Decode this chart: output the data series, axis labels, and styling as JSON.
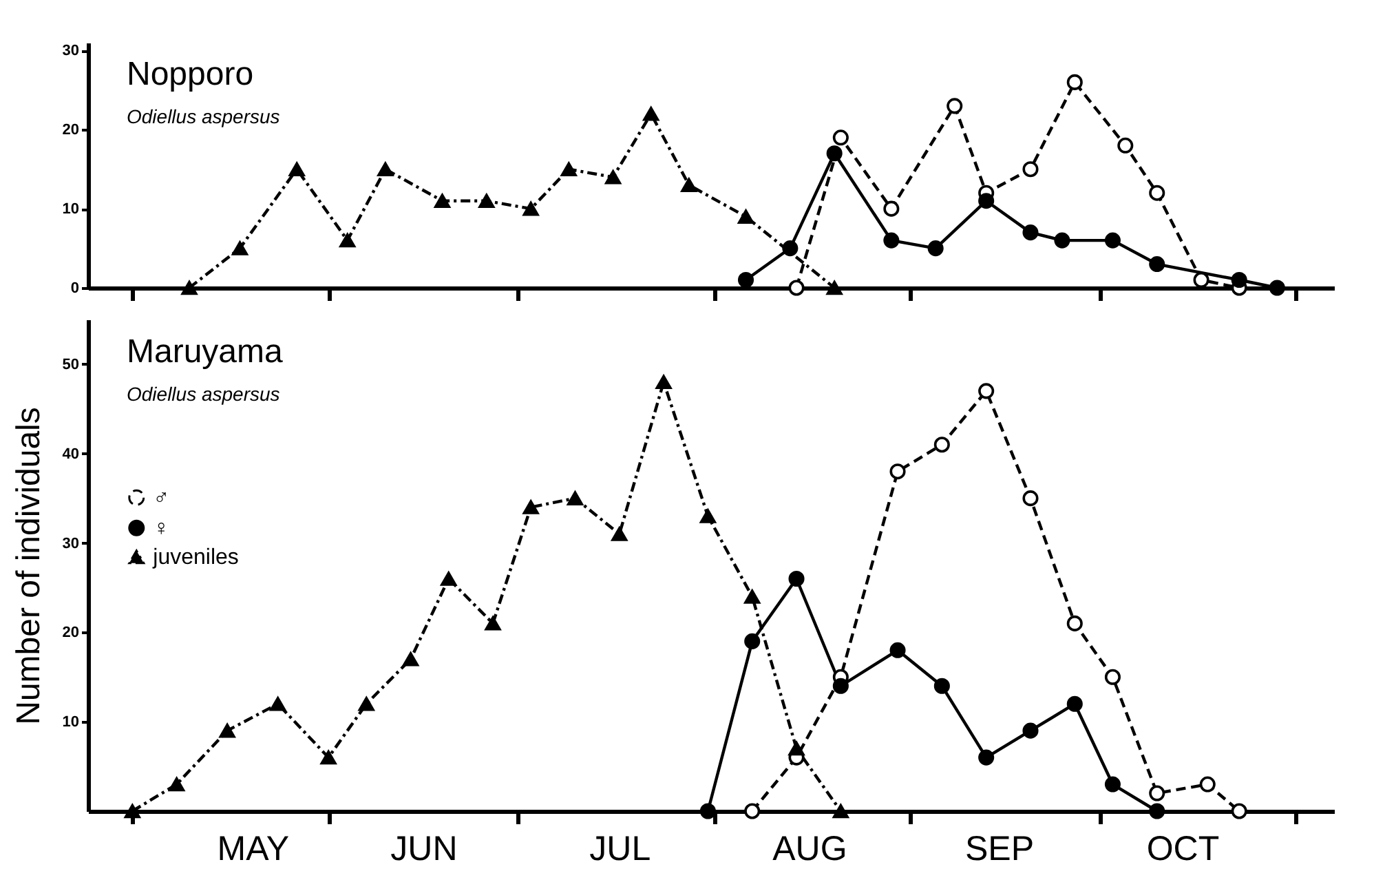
{
  "chart_data": [
    {
      "type": "line",
      "title": "Nopporo",
      "subtitle": "Odiellus aspersus",
      "xlim": [
        "--04-24",
        "--11-07"
      ],
      "ylim": [
        0,
        31
      ],
      "yticks": [
        0,
        10,
        20,
        30
      ],
      "xticks": [
        {
          "value": "--05-01",
          "label": null
        },
        {
          "value": "--06-01",
          "label": null
        },
        {
          "value": "--07-01",
          "label": null
        },
        {
          "value": "--08-01",
          "label": null
        },
        {
          "value": "--09-01",
          "label": null
        },
        {
          "value": "--10-01",
          "label": null
        },
        {
          "value": "--11-01",
          "label": null
        }
      ],
      "tick_labels": "y",
      "series": [
        {
          "color": "#000000",
          "marker": "circle",
          "line_style": "dashed",
          "x": [
            "--08-14",
            "--08-21",
            "--08-29",
            "--09-08",
            "--09-13",
            "--09-20",
            "--09-27",
            "--10-05",
            "--10-10",
            "--10-17",
            "--10-23"
          ],
          "values": [
            0,
            19,
            10,
            23,
            12,
            15,
            26,
            18,
            12,
            1,
            0
          ]
        },
        {
          "color": "#000000",
          "marker": "circle",
          "line_style": "solid",
          "x": [
            "--08-06",
            "--08-13",
            "--08-20",
            "--08-29",
            "--09-05",
            "--09-13",
            "--09-20",
            "--09-25",
            "--10-03",
            "--10-10",
            "--10-23",
            "--10-29"
          ],
          "values": [
            1,
            5,
            17,
            6,
            5,
            11,
            7,
            6,
            6,
            3,
            1,
            0
          ]
        },
        {
          "color": "#000000",
          "marker": "triangle",
          "line_style": "dotted",
          "x": [
            "--05-10",
            "--05-18",
            "--05-27",
            "--06-04",
            "--06-10",
            "--06-19",
            "--06-26",
            "--07-03",
            "--07-09",
            "--07-16",
            "--07-22",
            "--07-28",
            "--08-06",
            "--08-20"
          ],
          "values": [
            0,
            5,
            15,
            6,
            15,
            11,
            11,
            10,
            15,
            14,
            22,
            13,
            9,
            0
          ]
        }
      ]
    },
    {
      "type": "line",
      "title": "Maruyama",
      "subtitle": "Odiellus aspersus",
      "ylabel": "Number of individuals",
      "xlim": [
        "--04-24",
        "--11-07"
      ],
      "ylim": [
        0,
        55
      ],
      "yticks": [
        10,
        20,
        30,
        40,
        50
      ],
      "xticks": [
        {
          "value": "--05-01",
          "label": null
        },
        {
          "value": "--06-01",
          "label": null
        },
        {
          "value": "--07-01",
          "label": null
        },
        {
          "value": "--08-01",
          "label": null
        },
        {
          "value": "--09-01",
          "label": null
        },
        {
          "value": "--10-01",
          "label": null
        },
        {
          "value": "--11-01",
          "label": null
        },
        {
          "value": "--05-20",
          "label": "MAY"
        },
        {
          "value": "--06-16",
          "label": "JUN"
        },
        {
          "value": "--07-17",
          "label": "JUL"
        },
        {
          "value": "--08-16",
          "label": "AUG"
        },
        {
          "value": "--09-15",
          "label": "SEP"
        },
        {
          "value": "--10-14",
          "label": "OCT"
        }
      ],
      "legend": "top left",
      "series": [
        {
          "name": "♂",
          "color": "#000000",
          "marker": "circle",
          "line_style": "dashed",
          "x": [
            "--08-07",
            "--08-14",
            "--08-21",
            "--08-30",
            "--09-06",
            "--09-13",
            "--09-20",
            "--09-27",
            "--10-03",
            "--10-10",
            "--10-18",
            "--10-23"
          ],
          "values": [
            0,
            6,
            15,
            38,
            41,
            47,
            35,
            21,
            15,
            2,
            3,
            0
          ]
        },
        {
          "name": "♀",
          "color": "#000000",
          "marker": "circle",
          "line_style": "solid",
          "x": [
            "--07-31",
            "--08-07",
            "--08-14",
            "--08-21",
            "--08-30",
            "--09-06",
            "--09-13",
            "--09-20",
            "--09-27",
            "--10-03",
            "--10-10"
          ],
          "values": [
            0,
            19,
            26,
            14,
            18,
            14,
            6,
            9,
            12,
            3,
            0
          ]
        },
        {
          "name": "juveniles",
          "color": "#000000",
          "marker": "triangle",
          "line_style": "dotted",
          "x": [
            "--05-01",
            "--05-08",
            "--05-16",
            "--05-24",
            "--06-01",
            "--06-07",
            "--06-14",
            "--06-20",
            "--06-27",
            "--07-03",
            "--07-10",
            "--07-17",
            "--07-24",
            "--07-31",
            "--08-07",
            "--08-14",
            "--08-21"
          ],
          "values": [
            0,
            3,
            9,
            12,
            6,
            12,
            17,
            26,
            21,
            34,
            35,
            31,
            48,
            33,
            24,
            7,
            0
          ]
        }
      ]
    }
  ]
}
